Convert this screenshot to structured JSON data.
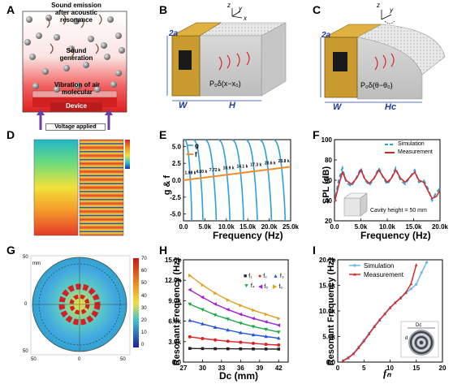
{
  "panels": {
    "A": {
      "letter": "A",
      "emission_text_1": "Sound emission",
      "emission_text_2": "after acoustic",
      "emission_text_3": "resonance",
      "generation_text_1": "Sound",
      "generation_text_2": "generation",
      "vibration_text_1": "Vibration of air",
      "vibration_text_2": "molecular",
      "device_text": "Device",
      "voltage_text": "Voltage applied",
      "colors": {
        "red": "#e8453c",
        "purple": "#6a3fa0",
        "gray": "#9a9a9a"
      }
    },
    "B": {
      "letter": "B",
      "dim_2a": "2a",
      "dim_W": "W",
      "dim_H": "H",
      "axis_z": "z",
      "axis_y": "y",
      "axis_x": "x",
      "formula": "P₀δ(x−x₀)"
    },
    "C": {
      "letter": "C",
      "dim_2a": "2a",
      "dim_W": "W",
      "dim_Hc": "Hc",
      "axis_z": "z",
      "axis_y": "y",
      "formula": "P₀δ(θ−θ₀)"
    },
    "D": {
      "letter": "D"
    },
    "E": {
      "letter": "E",
      "ylabel": "g & f",
      "xlabel": "Frequency (Hz)",
      "legend_g": "g",
      "legend_f": "f",
      "annotations": [
        "1.98 k",
        "4.60 k",
        "7.72 k",
        "10.9 k",
        "14.1 k",
        "17.3 k",
        "20.6 k",
        "23.8 k"
      ]
    },
    "F": {
      "letter": "F",
      "ylabel": "SPL (dB)",
      "xlabel": "Frequency (Hz)",
      "legend_sim": "Simulation",
      "legend_meas": "Measurement",
      "cavity_text": "Cavity height = 50 mm"
    },
    "G": {
      "letter": "G",
      "ticks_y": [
        "50",
        "0",
        "50"
      ],
      "ticks_x": [
        "50",
        "0",
        "50"
      ],
      "unit_mm": "mm",
      "colorbar_ticks": [
        "70",
        "60",
        "50",
        "40",
        "30",
        "20",
        "10",
        "0"
      ]
    },
    "H": {
      "letter": "H",
      "ylabel": "Resonant Frequency (Hz)",
      "xlabel": "Dc (mm)",
      "legend": [
        "f₁",
        "f₂",
        "f₃",
        "f₄",
        "f₅",
        "f₆"
      ]
    },
    "I": {
      "letter": "I",
      "ylabel": "Resonant Frequency (Hz)",
      "xlabel": "fₙ",
      "legend_sim": "Simulation",
      "legend_meas": "Measurement",
      "inset_dc": "Dc",
      "inset_d": "d"
    }
  },
  "chart_data": [
    {
      "panel": "E",
      "type": "line",
      "xlim": [
        0,
        25000
      ],
      "ylim": [
        -6,
        6
      ],
      "x_ticks": [
        "0.0",
        "5.0k",
        "10.0k",
        "15.0k",
        "20.0k",
        "25.0k"
      ],
      "y_ticks": [
        "5.0",
        "2.5",
        "0.0",
        "-2.5",
        "-5.0"
      ],
      "resonances_hz": [
        1980,
        4600,
        7720,
        10900,
        14100,
        17300,
        20600,
        23800
      ],
      "f_line": {
        "x": [
          0,
          25000
        ],
        "y": [
          0.0,
          2.0
        ]
      },
      "colors": {
        "g": "#2e9fd8",
        "f": "#f08c2a"
      }
    },
    {
      "panel": "F",
      "type": "line",
      "xlim": [
        0,
        20000
      ],
      "ylim": [
        20,
        100
      ],
      "x_ticks": [
        "0.0",
        "5.0k",
        "10.0k",
        "15.0k",
        "20.0k"
      ],
      "y_ticks": [
        "100",
        "80",
        "60",
        "40",
        "20"
      ],
      "series": [
        {
          "name": "Simulation",
          "color": "#2e9fd8",
          "x": [
            0,
            800,
            1500,
            2200,
            3200,
            4200,
            5000,
            5800,
            6600,
            7500,
            8400,
            9300,
            10000,
            10800,
            11600,
            12500,
            13400,
            14300,
            15200,
            16000,
            16900,
            17700,
            18500,
            19300,
            20000
          ],
          "y": [
            38,
            60,
            72,
            58,
            54,
            63,
            72,
            60,
            55,
            62,
            72,
            62,
            56,
            62,
            72,
            60,
            56,
            63,
            70,
            58,
            60,
            52,
            40,
            48,
            52
          ]
        },
        {
          "name": "Measurement",
          "color": "#d42a2a",
          "x": [
            0,
            800,
            1500,
            2200,
            3200,
            4200,
            5000,
            5800,
            6600,
            7500,
            8400,
            9300,
            10000,
            10800,
            11600,
            12500,
            13400,
            14300,
            15200,
            16000,
            16900,
            17700,
            18500,
            19300,
            20000
          ],
          "y": [
            38,
            55,
            68,
            60,
            56,
            62,
            70,
            61,
            57,
            62,
            70,
            63,
            58,
            62,
            70,
            62,
            58,
            63,
            68,
            60,
            58,
            50,
            42,
            44,
            50
          ]
        }
      ]
    },
    {
      "panel": "H",
      "type": "line",
      "xlim": [
        27,
        43.5
      ],
      "ylim": [
        0,
        15000
      ],
      "x_ticks": [
        "27",
        "30",
        "33",
        "36",
        "39",
        "42"
      ],
      "y_ticks": [
        "15.0k",
        "12.0k",
        "9.0k",
        "6.0k",
        "3.0k",
        "0.0"
      ],
      "x": [
        28,
        30,
        32,
        34,
        36,
        38,
        40,
        42
      ],
      "series": [
        {
          "name": "f₁",
          "color": "#222222",
          "values": [
            2000,
            1980,
            1960,
            1950,
            1940,
            1930,
            1920,
            1910
          ]
        },
        {
          "name": "f₂",
          "color": "#e02020",
          "values": [
            3700,
            3450,
            3250,
            3050,
            2900,
            2750,
            2600,
            2500
          ]
        },
        {
          "name": "f₃",
          "color": "#2255dd",
          "values": [
            6100,
            5600,
            5100,
            4700,
            4300,
            4000,
            3750,
            3500
          ]
        },
        {
          "name": "f₄",
          "color": "#1ea84a",
          "values": [
            8500,
            7700,
            6900,
            6300,
            5700,
            5200,
            4800,
            4400
          ]
        },
        {
          "name": "f₅",
          "color": "#a020d0",
          "values": [
            10600,
            9500,
            8500,
            7700,
            7000,
            6400,
            5900,
            5400
          ]
        },
        {
          "name": "f₆",
          "color": "#e0a020",
          "values": [
            12700,
            11300,
            10100,
            9100,
            8300,
            7600,
            7000,
            6400
          ]
        }
      ]
    },
    {
      "panel": "I",
      "type": "line",
      "xlim": [
        0,
        20
      ],
      "ylim": [
        0,
        20000
      ],
      "x_ticks": [
        "0",
        "5",
        "10",
        "15",
        "20"
      ],
      "y_ticks": [
        "20.0k",
        "15.0k",
        "10.0k",
        "5.0k",
        "0.0"
      ],
      "series": [
        {
          "name": "Simulation",
          "color": "#6fb8ea",
          "x": [
            1,
            2,
            3,
            4,
            5,
            6,
            7,
            8,
            9,
            10,
            11,
            12,
            13,
            14,
            15,
            16,
            17
          ],
          "y": [
            300,
            900,
            1700,
            3000,
            4300,
            5700,
            7000,
            8300,
            9500,
            10700,
            11700,
            12600,
            13500,
            14300,
            15200,
            17500,
            19500
          ]
        },
        {
          "name": "Measurement",
          "color": "#d42a2a",
          "x": [
            1,
            2,
            3,
            4,
            5,
            6,
            7,
            8,
            9,
            10,
            11,
            12,
            13,
            14,
            15
          ],
          "y": [
            250,
            800,
            1600,
            2800,
            4100,
            5500,
            6900,
            8200,
            9400,
            10600,
            11600,
            12500,
            13600,
            15300,
            19000
          ]
        }
      ]
    }
  ]
}
